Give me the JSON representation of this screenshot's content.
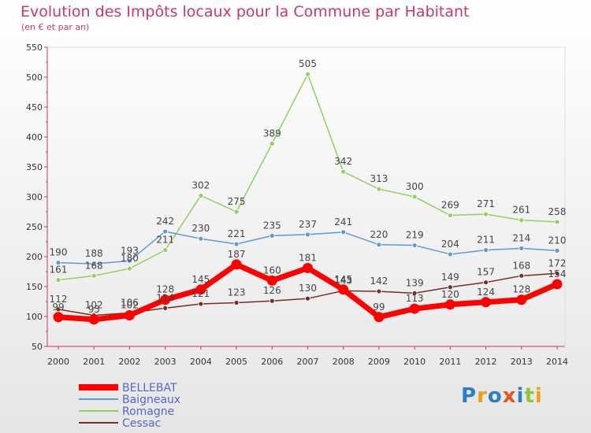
{
  "header": {
    "title": "Evolution des Impôts locaux pour la Commune par Habitant",
    "subtitle": "(en € et par an)"
  },
  "brand": {
    "logo_text": "Proxiti"
  },
  "chart_data": {
    "type": "line",
    "x": [
      "2000",
      "2001",
      "2002",
      "2003",
      "2004",
      "2005",
      "2006",
      "2007",
      "2008",
      "2009",
      "2010",
      "2011",
      "2012",
      "2013",
      "2014"
    ],
    "ylim": [
      50,
      550
    ],
    "yticks": [
      50,
      100,
      150,
      200,
      250,
      300,
      350,
      400,
      450,
      500,
      550
    ],
    "grid": false,
    "legend_position": "bottom-left",
    "series": [
      {
        "name": "BELLEBAT",
        "color": "#ff0000",
        "values": [
          99,
          95,
          102,
          128,
          145,
          187,
          160,
          181,
          145,
          99,
          113,
          120,
          124,
          128,
          154
        ]
      },
      {
        "name": "Baigneaux",
        "color": "#5b9bd5",
        "values": [
          190,
          188,
          193,
          242,
          230,
          221,
          235,
          237,
          241,
          220,
          219,
          204,
          211,
          214,
          210
        ]
      },
      {
        "name": "Romagne",
        "color": "#8fd35a",
        "values": [
          161,
          168,
          180,
          211,
          302,
          275,
          389,
          505,
          342,
          313,
          300,
          269,
          271,
          261,
          258
        ]
      },
      {
        "name": "Cessac",
        "color": "#7a2a2a",
        "values": [
          112,
          102,
          106,
          114,
          121,
          123,
          126,
          130,
          143,
          142,
          139,
          149,
          157,
          168,
          172
        ]
      }
    ]
  }
}
